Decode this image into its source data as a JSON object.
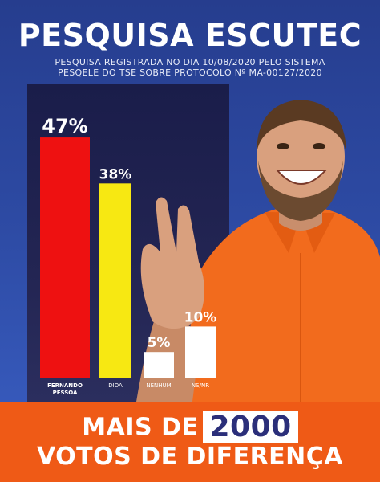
{
  "header": {
    "title": "PESQUISA ESCUTEC",
    "subtitle_line1": "PESQUISA REGISTRADA NO DIA 10/08/2020 PELO SISTEMA",
    "subtitle_line2": "PESQELE DO TSE SOBRE PROTOCOLO Nº MA-00127/2020"
  },
  "chart_data": {
    "type": "bar",
    "categories": [
      "FERNANDO PESSOA",
      "DIDA",
      "NENHUM",
      "NS/NR"
    ],
    "category_lines": [
      [
        "FERNANDO",
        "PESSOA"
      ],
      [
        "DIDA"
      ],
      [
        "NENHUM"
      ],
      [
        "NS/NR"
      ]
    ],
    "values": [
      47,
      38,
      5,
      10
    ],
    "value_labels": [
      "47%",
      "38%",
      "5%",
      "10%"
    ],
    "colors": [
      "#ee1111",
      "#f7e812",
      "#ffffff",
      "#ffffff"
    ],
    "ylim": [
      0,
      50
    ],
    "grid": false,
    "legend": "none"
  },
  "banner": {
    "line1_prefix": "MAIS DE",
    "line1_number": "2000",
    "line2": "VOTOS DE DIFERENÇA"
  },
  "colors": {
    "background": "#2d4aa3",
    "chart_panel": "#1f2150",
    "banner": "#ef5a16",
    "shirt": "#f26b1d"
  }
}
